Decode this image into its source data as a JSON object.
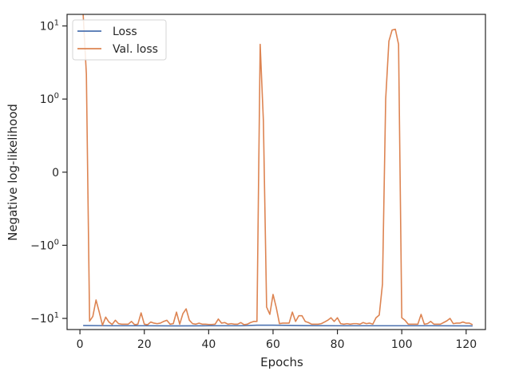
{
  "chart_data": {
    "type": "line",
    "xlabel": "Epochs",
    "ylabel": "Negative log-likelihood",
    "xlim": [
      -4,
      126
    ],
    "y_scale": "symlog",
    "ylim_display": [
      -14.2,
      14.4
    ],
    "grid": false,
    "legend_position": "top-left",
    "x_ticks": [
      {
        "value": 0,
        "label": "0"
      },
      {
        "value": 20,
        "label": "20"
      },
      {
        "value": 40,
        "label": "40"
      },
      {
        "value": 60,
        "label": "60"
      },
      {
        "value": 80,
        "label": "80"
      },
      {
        "value": 100,
        "label": "100"
      },
      {
        "value": 120,
        "label": "120"
      }
    ],
    "y_ticks": [
      {
        "value": 10,
        "base": "10",
        "exp": "1"
      },
      {
        "value": 1,
        "base": "10",
        "exp": "0"
      },
      {
        "value": 0,
        "base": "0",
        "exp": ""
      },
      {
        "value": -1,
        "base": "−10",
        "exp": "0"
      },
      {
        "value": -10,
        "base": "−10",
        "exp": "1"
      }
    ],
    "series": [
      {
        "name": "Loss",
        "color": "#4c72b0",
        "points": [
          [
            1,
            -12.5
          ],
          [
            10,
            -12.6
          ],
          [
            20,
            -12.6
          ],
          [
            30,
            -12.65
          ],
          [
            40,
            -12.6
          ],
          [
            50,
            -12.6
          ],
          [
            55,
            -12.4
          ],
          [
            60,
            -12.4
          ],
          [
            70,
            -12.55
          ],
          [
            80,
            -12.6
          ],
          [
            90,
            -12.6
          ],
          [
            100,
            -12.6
          ],
          [
            110,
            -12.6
          ],
          [
            122,
            -12.65
          ]
        ]
      },
      {
        "name": "Val. loss",
        "color": "#dd8452",
        "points": [
          [
            1,
            14.4
          ],
          [
            2,
            2.2
          ],
          [
            3,
            -10.9
          ],
          [
            4,
            -9.4
          ],
          [
            5,
            -5.6
          ],
          [
            6,
            -8.2
          ],
          [
            7,
            -12.4
          ],
          [
            8,
            -9.6
          ],
          [
            9,
            -11.2
          ],
          [
            10,
            -12.1
          ],
          [
            11,
            -10.6
          ],
          [
            12,
            -11.8
          ],
          [
            13,
            -12.0
          ],
          [
            14,
            -12.0
          ],
          [
            15,
            -12.0
          ],
          [
            16,
            -11.0
          ],
          [
            17,
            -12.2
          ],
          [
            18,
            -12.0
          ],
          [
            19,
            -8.4
          ],
          [
            20,
            -12.0
          ],
          [
            21,
            -12.2
          ],
          [
            22,
            -11.2
          ],
          [
            23,
            -11.6
          ],
          [
            24,
            -11.8
          ],
          [
            25,
            -11.6
          ],
          [
            26,
            -11.0
          ],
          [
            27,
            -10.6
          ],
          [
            28,
            -12.0
          ],
          [
            29,
            -11.8
          ],
          [
            30,
            -8.2
          ],
          [
            31,
            -12.0
          ],
          [
            32,
            -8.6
          ],
          [
            33,
            -7.4
          ],
          [
            34,
            -10.6
          ],
          [
            35,
            -11.8
          ],
          [
            36,
            -12.0
          ],
          [
            37,
            -11.6
          ],
          [
            38,
            -12.0
          ],
          [
            39,
            -12.0
          ],
          [
            40,
            -12.1
          ],
          [
            41,
            -12.1
          ],
          [
            42,
            -12.0
          ],
          [
            43,
            -10.2
          ],
          [
            44,
            -11.6
          ],
          [
            45,
            -11.4
          ],
          [
            46,
            -12.0
          ],
          [
            47,
            -11.8
          ],
          [
            48,
            -12.0
          ],
          [
            49,
            -12.0
          ],
          [
            50,
            -11.4
          ],
          [
            51,
            -12.2
          ],
          [
            52,
            -12.0
          ],
          [
            53,
            -11.4
          ],
          [
            54,
            -11.0
          ],
          [
            55,
            -11.0
          ],
          [
            56,
            5.6
          ],
          [
            57,
            0.7
          ],
          [
            58,
            -7.0
          ],
          [
            59,
            -8.8
          ],
          [
            60,
            -4.7
          ],
          [
            61,
            -7.1
          ],
          [
            62,
            -11.8
          ],
          [
            63,
            -11.6
          ],
          [
            64,
            -11.6
          ],
          [
            65,
            -11.6
          ],
          [
            66,
            -8.2
          ],
          [
            67,
            -11.0
          ],
          [
            68,
            -9.2
          ],
          [
            69,
            -9.2
          ],
          [
            70,
            -11.0
          ],
          [
            71,
            -11.4
          ],
          [
            72,
            -12.0
          ],
          [
            73,
            -12.0
          ],
          [
            74,
            -12.0
          ],
          [
            75,
            -11.8
          ],
          [
            76,
            -11.2
          ],
          [
            77,
            -10.6
          ],
          [
            78,
            -9.8
          ],
          [
            79,
            -11.0
          ],
          [
            80,
            -9.8
          ],
          [
            81,
            -11.8
          ],
          [
            82,
            -12.0
          ],
          [
            83,
            -11.8
          ],
          [
            84,
            -12.0
          ],
          [
            85,
            -11.8
          ],
          [
            86,
            -11.8
          ],
          [
            87,
            -12.0
          ],
          [
            88,
            -11.4
          ],
          [
            89,
            -11.8
          ],
          [
            90,
            -11.6
          ],
          [
            91,
            -12.0
          ],
          [
            92,
            -9.8
          ],
          [
            93,
            -9.0
          ],
          [
            94,
            -3.4
          ],
          [
            95,
            1.0
          ],
          [
            96,
            6.2
          ],
          [
            97,
            8.8
          ],
          [
            98,
            9.0
          ],
          [
            99,
            5.6
          ],
          [
            100,
            -9.8
          ],
          [
            101,
            -10.6
          ],
          [
            102,
            -12.0
          ],
          [
            103,
            -12.0
          ],
          [
            104,
            -12.0
          ],
          [
            105,
            -12.0
          ],
          [
            106,
            -8.8
          ],
          [
            107,
            -12.0
          ],
          [
            108,
            -11.8
          ],
          [
            109,
            -11.0
          ],
          [
            110,
            -12.0
          ],
          [
            111,
            -12.0
          ],
          [
            112,
            -12.0
          ],
          [
            113,
            -11.4
          ],
          [
            114,
            -10.8
          ],
          [
            115,
            -10.0
          ],
          [
            116,
            -11.8
          ],
          [
            117,
            -11.6
          ],
          [
            118,
            -11.6
          ],
          [
            119,
            -11.2
          ],
          [
            120,
            -11.6
          ],
          [
            121,
            -11.6
          ],
          [
            122,
            -12.2
          ]
        ]
      }
    ]
  }
}
